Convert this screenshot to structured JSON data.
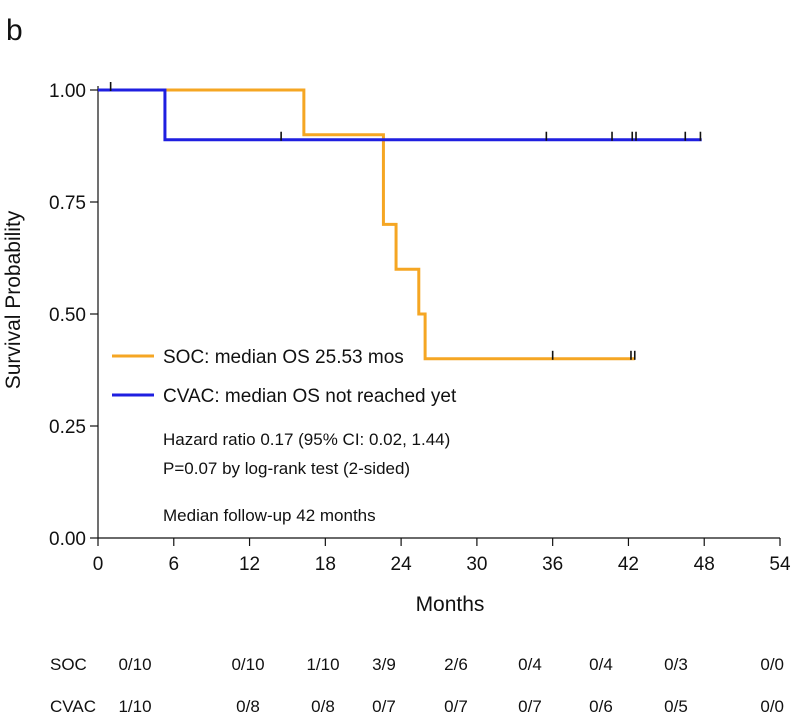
{
  "chart_data": {
    "type": "line",
    "panel_label": "b",
    "xlabel": "Months",
    "ylabel": "Survival Probability",
    "xlim": [
      0,
      54
    ],
    "ylim": [
      0,
      1
    ],
    "x_ticks": [
      "0",
      "6",
      "12",
      "18",
      "24",
      "30",
      "36",
      "42",
      "48",
      "54"
    ],
    "x_tick_values": [
      0,
      6,
      12,
      18,
      24,
      30,
      36,
      42,
      48,
      54
    ],
    "y_ticks": [
      "0.00",
      "0.25",
      "0.50",
      "0.75",
      "1.00"
    ],
    "y_tick_values": [
      0,
      0.25,
      0.5,
      0.75,
      1
    ],
    "series": [
      {
        "name": "SOC",
        "legend": "SOC: median OS 25.53 mos",
        "color": "#F5A623",
        "steps": [
          [
            0,
            1.0
          ],
          [
            16.3,
            0.9
          ],
          [
            22.6,
            0.7
          ],
          [
            23.6,
            0.6
          ],
          [
            25.4,
            0.5
          ],
          [
            25.9,
            0.4
          ],
          [
            42.5,
            0.4
          ]
        ],
        "censor_x": [
          36,
          42.2,
          42.5
        ]
      },
      {
        "name": "CVAC",
        "legend": "CVAC: median OS not reached yet",
        "color": "#1F1FE0",
        "steps": [
          [
            0,
            1.0
          ],
          [
            5.3,
            0.889
          ],
          [
            47.8,
            0.889
          ]
        ],
        "censor_x": [
          1,
          14.5,
          35.5,
          40.7,
          42.3,
          42.6,
          46.5,
          47.7
        ]
      }
    ],
    "annotations": [
      "Hazard ratio 0.17 (95% CI: 0.02, 1.44)",
      "P=0.07 by log-rank test (2-sided)",
      "Median follow-up 42 months"
    ],
    "risk_table": {
      "rows": [
        {
          "label": "SOC",
          "values": [
            "0/10",
            "0/10",
            "1/10",
            "3/9",
            "2/6",
            "0/4",
            "0/4",
            "0/3",
            "0/0"
          ]
        },
        {
          "label": "CVAC",
          "values": [
            "1/10",
            "0/8",
            "0/8",
            "0/7",
            "0/7",
            "0/7",
            "0/6",
            "0/5",
            "0/0"
          ]
        }
      ]
    }
  }
}
